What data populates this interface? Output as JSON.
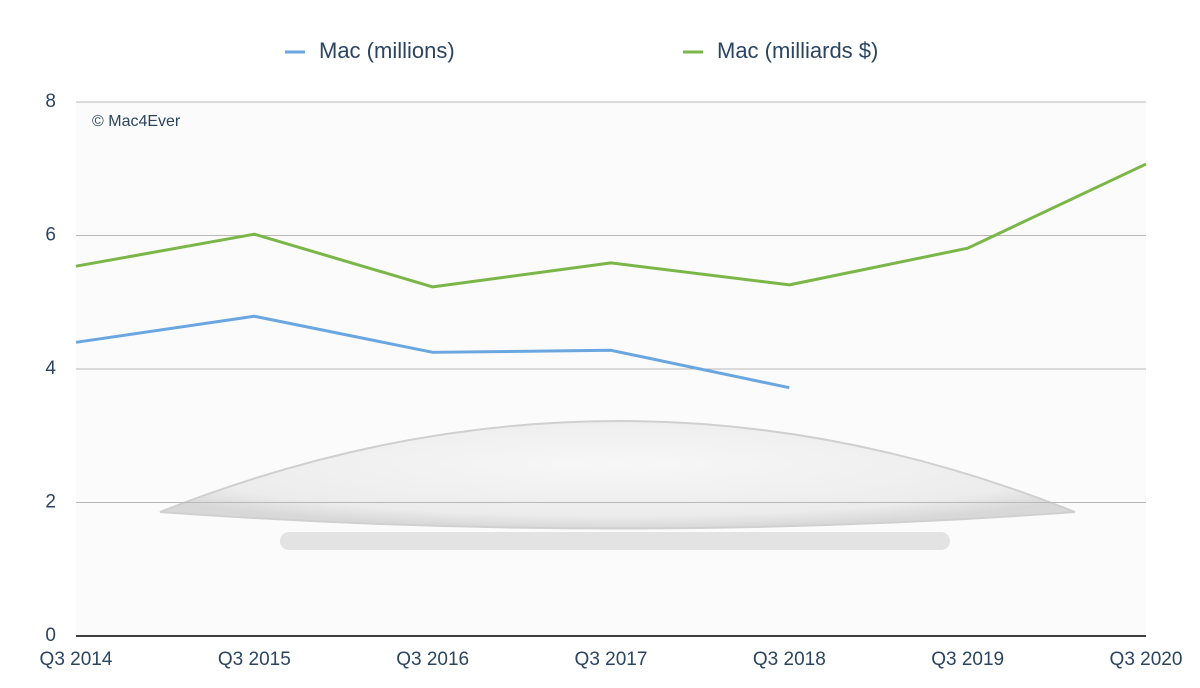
{
  "chart_data": {
    "type": "line",
    "annotation": "© Mac4Ever",
    "categories": [
      "Q3 2014",
      "Q3 2015",
      "Q3 2016",
      "Q3 2017",
      "Q3 2018",
      "Q3 2019",
      "Q3 2020"
    ],
    "series": [
      {
        "name": "Mac (millions)",
        "color": "#6aa6e0",
        "values": [
          4.4,
          4.79,
          4.25,
          4.28,
          3.72,
          null,
          null
        ]
      },
      {
        "name": "Mac (milliards $)",
        "color": "#7ab648",
        "values": [
          5.54,
          6.02,
          5.23,
          5.59,
          5.26,
          5.81,
          7.07
        ]
      }
    ],
    "ylim": [
      0,
      8
    ],
    "yticks": [
      0,
      2,
      4,
      6,
      8
    ],
    "grid": true
  }
}
